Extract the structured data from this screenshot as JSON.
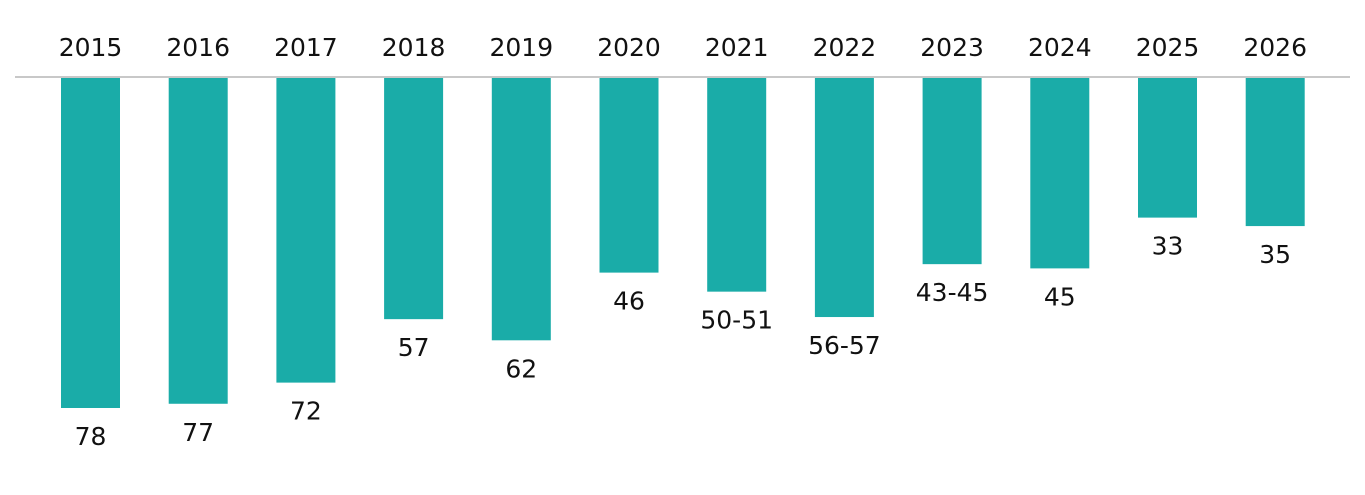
{
  "chart_data": {
    "type": "bar",
    "orientation": "downward-from-top-axis",
    "categories": [
      "2015",
      "2016",
      "2017",
      "2018",
      "2019",
      "2020",
      "2021",
      "2022",
      "2023",
      "2024",
      "2025",
      "2026"
    ],
    "values": [
      78,
      77,
      72,
      57,
      62,
      46,
      50.5,
      56.5,
      44,
      45,
      33,
      35
    ],
    "data_labels": [
      "78",
      "77",
      "72",
      "57",
      "62",
      "46",
      "50-51",
      "56-57",
      "43-45",
      "45",
      "33",
      "35"
    ],
    "title": "",
    "xlabel": "",
    "ylabel": "",
    "ylim": [
      0,
      78
    ],
    "grid": false,
    "legend": "none",
    "colors": {
      "bar": "#1aaca8",
      "axis_line": "#c8c8c8"
    }
  }
}
